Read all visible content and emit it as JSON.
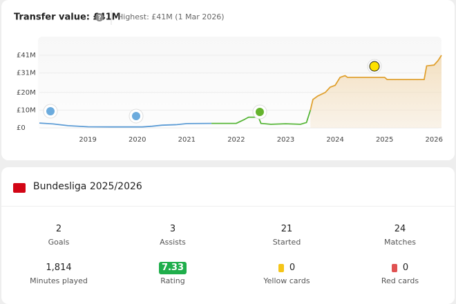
{
  "chart_data": {
    "type": "line",
    "title": "Transfer value: £41M",
    "subtitle": "Highest: £41M (1 Mar 2026)",
    "xlim": [
      2018.02,
      2026.15
    ],
    "xticks": [
      2019,
      2020,
      2021,
      2022,
      2023,
      2024,
      2025,
      2026
    ],
    "ylim": [
      0,
      41
    ],
    "yticks": [
      {
        "value": 0,
        "label": "£0"
      },
      {
        "value": 10,
        "label": "£10M"
      },
      {
        "value": 20,
        "label": "£20M"
      },
      {
        "value": 31,
        "label": "£31M"
      },
      {
        "value": 41,
        "label": "£41M"
      }
    ],
    "grid": true,
    "series": [
      {
        "color": "#5b9bd5",
        "x": [
          2018.02,
          2018.3,
          2018.6,
          2019.0,
          2019.5,
          2020.1,
          2020.3,
          2020.5,
          2020.8,
          2021.0,
          2021.5
        ],
        "values": [
          2.7,
          2.2,
          1.2,
          0.6,
          0.5,
          0.5,
          0.9,
          1.5,
          1.8,
          2.4,
          2.5
        ]
      },
      {
        "color": "#55b536",
        "x": [
          2021.5,
          2022.0,
          2022.15,
          2022.25,
          2022.45,
          2022.5,
          2022.7,
          2023.0,
          2023.3,
          2023.42,
          2023.5
        ],
        "values": [
          2.5,
          2.5,
          4.5,
          6.0,
          6.0,
          2.5,
          2.0,
          2.3,
          2.0,
          3.0,
          10.0
        ]
      },
      {
        "color": "#e0a02e",
        "x": [
          2023.5,
          2023.55,
          2023.65,
          2023.8,
          2023.9,
          2024.0,
          2024.1,
          2024.2,
          2024.25,
          2025.0,
          2025.05,
          2025.8,
          2025.85,
          2026.0,
          2026.08,
          2026.15
        ],
        "values": [
          10.0,
          16.0,
          18.0,
          20.0,
          23.0,
          24.0,
          28.5,
          29.5,
          28.5,
          28.5,
          27.3,
          27.3,
          35.0,
          35.5,
          38.0,
          41.0
        ]
      }
    ]
  },
  "league": {
    "title": "Bundesliga 2025/2026",
    "stats": [
      {
        "value": "2",
        "label": "Goals"
      },
      {
        "value": "3",
        "label": "Assists"
      },
      {
        "value": "21",
        "label": "Started"
      },
      {
        "value": "24",
        "label": "Matches"
      },
      {
        "value": "1,814",
        "label": "Minutes played"
      },
      {
        "value": "7.33",
        "label": "Rating"
      },
      {
        "value": "0",
        "label": "Yellow cards"
      },
      {
        "value": "0",
        "label": "Red cards"
      }
    ]
  }
}
